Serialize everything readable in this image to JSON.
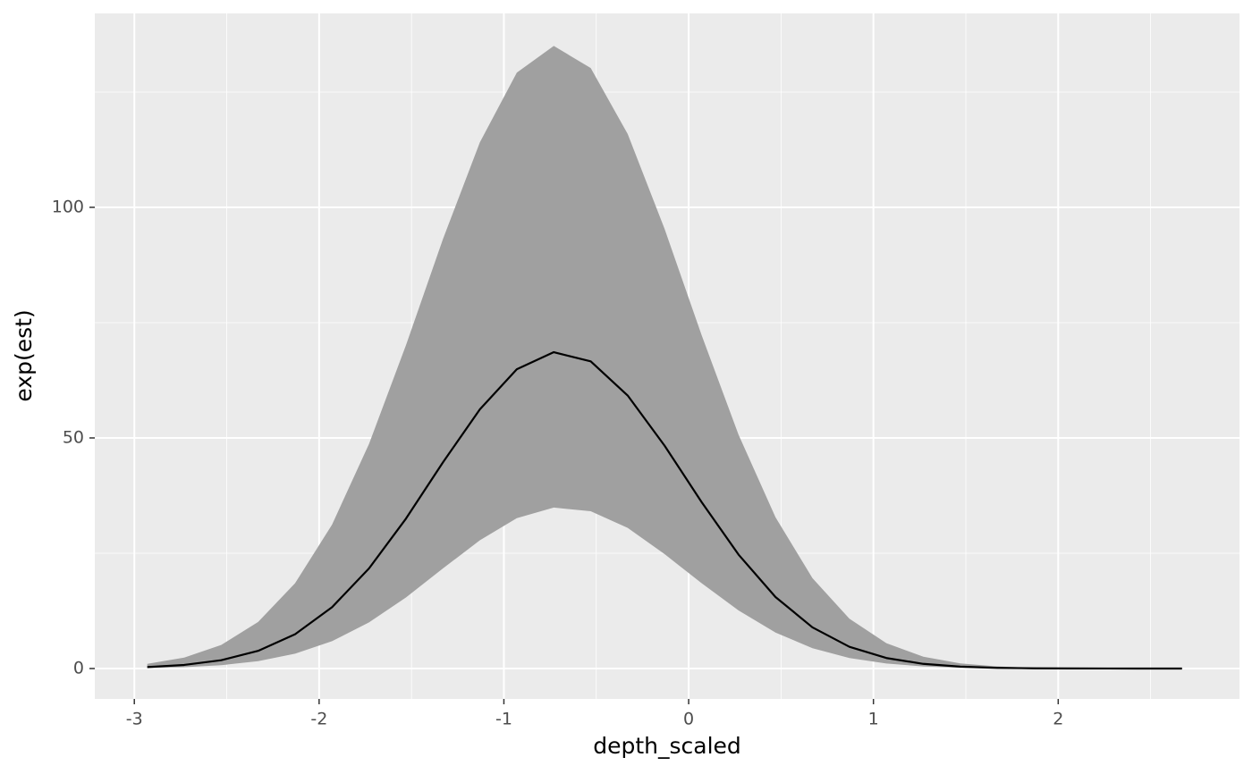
{
  "chart_data": {
    "type": "ribbon-line",
    "x_label": "depth_scaled",
    "y_label": "exp(est)",
    "x": [
      -2.93,
      -2.73,
      -2.53,
      -2.33,
      -2.13,
      -1.93,
      -1.73,
      -1.53,
      -1.33,
      -1.13,
      -0.93,
      -0.73,
      -0.53,
      -0.33,
      -0.13,
      0.07,
      0.27,
      0.47,
      0.67,
      0.87,
      1.07,
      1.27,
      1.47,
      1.67,
      1.87,
      2.07,
      2.27,
      2.47,
      2.67
    ],
    "ribbon": {
      "color": "#a0a0a0",
      "upper": [
        1.02,
        2.38,
        5.1,
        10.1,
        18.5,
        31.2,
        48.7,
        70.1,
        93.1,
        114.1,
        129.2,
        135.0,
        130.2,
        115.9,
        95.3,
        72.3,
        50.7,
        32.8,
        19.6,
        10.8,
        5.49,
        2.57,
        1.12,
        0.45,
        0.16,
        0.06,
        0.02,
        0,
        0
      ],
      "lower": [
        0.11,
        0.3,
        0.72,
        1.59,
        3.21,
        5.93,
        10.0,
        15.4,
        21.7,
        27.8,
        32.6,
        34.9,
        34.1,
        30.5,
        24.8,
        18.5,
        12.6,
        7.79,
        4.41,
        2.28,
        1.08,
        0.47,
        0.18,
        0.07,
        0.02,
        0.01,
        0,
        0,
        0
      ]
    },
    "line": {
      "color": "#000000",
      "values": [
        0.31,
        0.78,
        1.8,
        3.83,
        7.44,
        13.3,
        21.7,
        32.5,
        44.7,
        56.2,
        64.9,
        68.6,
        66.6,
        59.2,
        48.3,
        36.1,
        24.7,
        15.5,
        8.93,
        4.71,
        2.28,
        1.01,
        0.41,
        0.15,
        0.05,
        0.02,
        0.01,
        0,
        0
      ]
    },
    "xlim": [
      -3.214,
      2.981
    ],
    "ylim": [
      -6.59,
      142.05
    ],
    "xticks": [
      -3,
      -2,
      -1,
      0,
      1,
      2
    ],
    "yticks": [
      0,
      50,
      100
    ],
    "grid": true
  }
}
